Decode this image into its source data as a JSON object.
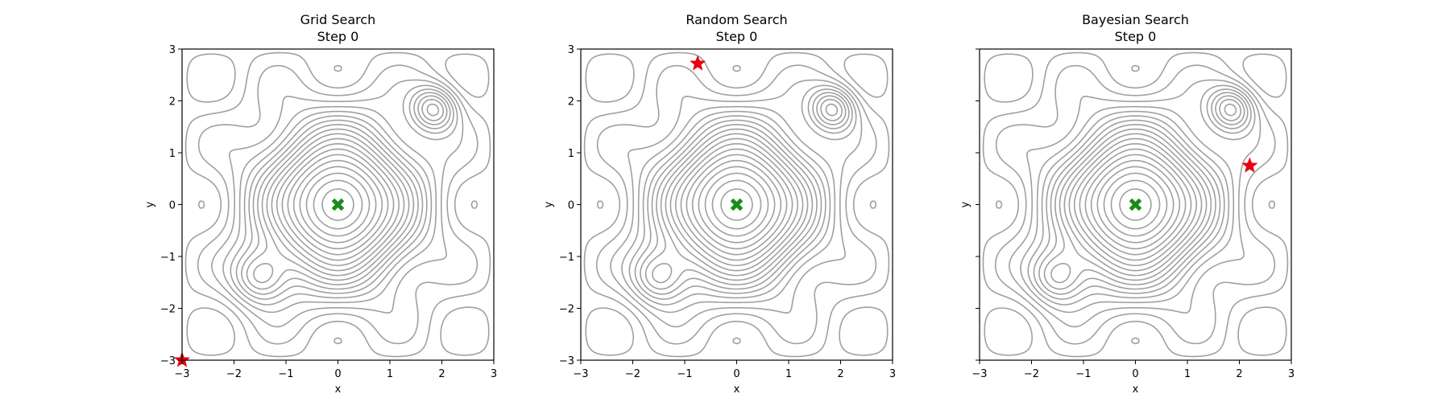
{
  "chart_data": [
    {
      "type": "contour",
      "title": [
        "Grid Search",
        "Step 0"
      ],
      "xlabel": "x",
      "ylabel": "y",
      "xlim": [
        -3,
        3
      ],
      "ylim": [
        -3,
        3
      ],
      "xticks": [
        -3,
        -2,
        -1,
        0,
        1,
        2,
        3
      ],
      "yticks": [
        -3,
        -2,
        -1,
        0,
        1,
        2,
        3
      ],
      "show_yticklabels": true,
      "grid": false,
      "contour_color": "#a0a0a0",
      "optimum": {
        "x": 0,
        "y": 0,
        "marker": "X",
        "color": "#1a8a1a"
      },
      "current_point": {
        "x": -3,
        "y": -3,
        "marker": "star",
        "color": "#e8000b"
      }
    },
    {
      "type": "contour",
      "title": [
        "Random Search",
        "Step 0"
      ],
      "xlabel": "x",
      "ylabel": "y",
      "xlim": [
        -3,
        3
      ],
      "ylim": [
        -3,
        3
      ],
      "xticks": [
        -3,
        -2,
        -1,
        0,
        1,
        2,
        3
      ],
      "yticks": [
        -3,
        -2,
        -1,
        0,
        1,
        2,
        3
      ],
      "show_yticklabels": true,
      "grid": false,
      "contour_color": "#a0a0a0",
      "optimum": {
        "x": 0,
        "y": 0,
        "marker": "X",
        "color": "#1a8a1a"
      },
      "current_point": {
        "x": -0.75,
        "y": 2.72,
        "marker": "star",
        "color": "#e8000b"
      }
    },
    {
      "type": "contour",
      "title": [
        "Bayesian Search",
        "Step 0"
      ],
      "xlabel": "x",
      "ylabel": "y",
      "xlim": [
        -3,
        3
      ],
      "ylim": [
        -3,
        3
      ],
      "xticks": [
        -3,
        -2,
        -1,
        0,
        1,
        2,
        3
      ],
      "yticks": [
        -3,
        -2,
        -1,
        0,
        1,
        2,
        3
      ],
      "show_yticklabels": false,
      "grid": false,
      "contour_color": "#a0a0a0",
      "optimum": {
        "x": 0,
        "y": 0,
        "marker": "X",
        "color": "#1a8a1a"
      },
      "current_point": {
        "x": 2.2,
        "y": 0.75,
        "marker": "star",
        "color": "#e8000b"
      }
    }
  ]
}
